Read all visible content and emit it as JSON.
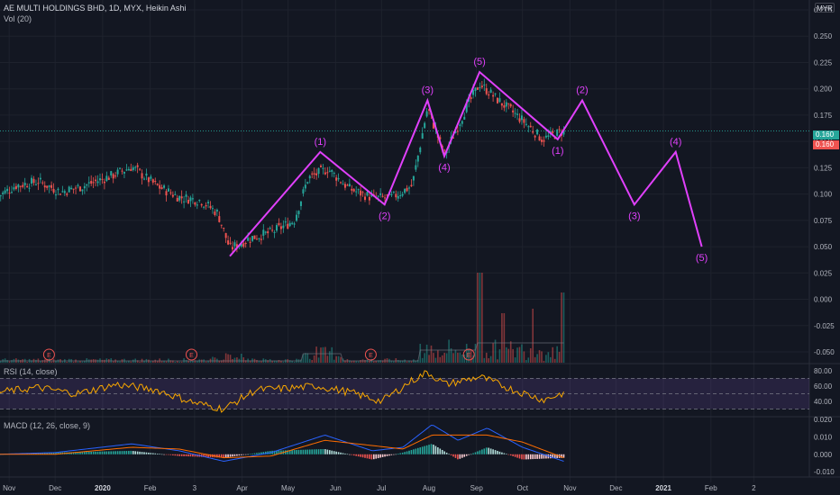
{
  "header": {
    "symbol_line": "AE MULTI HOLDINGS BHD, 1D, MYX, Heikin Ashi",
    "volume_label": "Vol (20)",
    "rsi_label": "RSI (14, close)",
    "macd_label": "MACD (12, 26, close, 9)",
    "currency": "MYR"
  },
  "colors": {
    "background": "#131722",
    "up": "#26a69a",
    "down": "#ef5350",
    "wave": "#e040fb",
    "rsi_line": "#f7a600",
    "rsi_band": "#7e57c2",
    "macd_line": "#2962ff",
    "signal_line": "#ff6d00",
    "grid": "#1e222d",
    "axis_text": "#b2b5be"
  },
  "last_price": {
    "close_label": "0.160",
    "current_label": "0.160"
  },
  "chart_data": [
    {
      "type": "candlestick",
      "title": "AE MULTI HOLDINGS BHD, 1D, MYX, Heikin Ashi",
      "y_ticks": [
        "0.275",
        "0.250",
        "0.225",
        "0.200",
        "0.175",
        "0.150",
        "0.125",
        "0.100",
        "0.075",
        "0.050",
        "0.025",
        "0.000",
        "-0.025",
        "-0.050"
      ],
      "ylim": [
        -0.06,
        0.28
      ],
      "x_ticks": [
        "Nov",
        "Dec",
        "2020",
        "Feb",
        "3",
        "Apr",
        "May",
        "Jun",
        "Jul",
        "Aug",
        "Sep",
        "Oct",
        "Nov",
        "Dec",
        "2021",
        "Feb",
        "2"
      ],
      "price_path": [
        [
          "2019-10-25",
          0.098
        ],
        [
          "2019-11-05",
          0.108
        ],
        [
          "2019-11-20",
          0.112
        ],
        [
          "2019-12-05",
          0.102
        ],
        [
          "2019-12-20",
          0.108
        ],
        [
          "2020-01-08",
          0.118
        ],
        [
          "2020-01-20",
          0.126
        ],
        [
          "2020-02-05",
          0.108
        ],
        [
          "2020-02-20",
          0.097
        ],
        [
          "2020-03-05",
          0.094
        ],
        [
          "2020-03-16",
          0.082
        ],
        [
          "2020-03-24",
          0.048
        ],
        [
          "2020-04-06",
          0.058
        ],
        [
          "2020-04-21",
          0.064
        ],
        [
          "2020-05-05",
          0.075
        ],
        [
          "2020-05-14",
          0.115
        ],
        [
          "2020-05-27",
          0.124
        ],
        [
          "2020-06-10",
          0.105
        ],
        [
          "2020-06-26",
          0.096
        ],
        [
          "2020-07-08",
          0.097
        ],
        [
          "2020-07-21",
          0.108
        ],
        [
          "2020-07-31",
          0.182
        ],
        [
          "2020-08-11",
          0.137
        ],
        [
          "2020-08-24",
          0.178
        ],
        [
          "2020-09-03",
          0.205
        ],
        [
          "2020-09-16",
          0.188
        ],
        [
          "2020-10-01",
          0.17
        ],
        [
          "2020-10-14",
          0.152
        ],
        [
          "2020-10-28",
          0.16
        ]
      ],
      "wave_labels": [
        {
          "label": "(1)",
          "date": "2020-05-22",
          "price": 0.14
        },
        {
          "label": "(2)",
          "date": "2020-07-03",
          "price": 0.09
        },
        {
          "label": "(3)",
          "date": "2020-07-31",
          "price": 0.189
        },
        {
          "label": "(4)",
          "date": "2020-08-11",
          "price": 0.136
        },
        {
          "label": "(5)",
          "date": "2020-09-03",
          "price": 0.216
        },
        {
          "label": "(1)",
          "date": "2020-10-24",
          "price": 0.152
        },
        {
          "label": "(2)",
          "date": "2020-11-09",
          "price": 0.189
        },
        {
          "label": "(3)",
          "date": "2020-12-13",
          "price": 0.09
        },
        {
          "label": "(4)",
          "date": "2021-01-09",
          "price": 0.14
        },
        {
          "label": "(5)",
          "date": "2021-01-26",
          "price": 0.05
        }
      ],
      "wave_path": [
        [
          "2020-03-24",
          0.041
        ],
        [
          "2020-05-22",
          0.14
        ],
        [
          "2020-07-03",
          0.09
        ],
        [
          "2020-07-31",
          0.189
        ],
        [
          "2020-08-11",
          0.136
        ],
        [
          "2020-09-03",
          0.216
        ],
        [
          "2020-10-24",
          0.152
        ],
        [
          "2020-11-09",
          0.189
        ],
        [
          "2020-12-13",
          0.09
        ],
        [
          "2021-01-09",
          0.14
        ],
        [
          "2021-01-26",
          0.05
        ]
      ],
      "earnings_markers": [
        {
          "label": "E",
          "date": "2019-11-27"
        },
        {
          "label": "E",
          "date": "2020-02-28"
        },
        {
          "label": "E",
          "date": "2020-06-24"
        },
        {
          "label": "E",
          "date": "2020-08-27"
        }
      ]
    },
    {
      "type": "line",
      "title": "RSI (14, close)",
      "y_ticks": [
        "80.00",
        "60.00",
        "40.00"
      ],
      "ylim": [
        20,
        88
      ],
      "band": [
        30,
        70
      ],
      "x": [
        "2019-10-25",
        "2019-11-20",
        "2019-12-15",
        "2020-01-10",
        "2020-02-05",
        "2020-03-01",
        "2020-03-20",
        "2020-04-10",
        "2020-05-01",
        "2020-05-20",
        "2020-06-10",
        "2020-07-01",
        "2020-07-20",
        "2020-07-31",
        "2020-08-12",
        "2020-09-03",
        "2020-09-25",
        "2020-10-15",
        "2020-10-28"
      ],
      "values": [
        52,
        58,
        50,
        62,
        55,
        38,
        30,
        55,
        57,
        60,
        52,
        40,
        66,
        78,
        62,
        72,
        55,
        42,
        51
      ]
    },
    {
      "type": "line",
      "title": "MACD (12, 26, close, 9)",
      "y_ticks": [
        "0.020",
        "0.010",
        "0.000",
        "-0.010"
      ],
      "ylim": [
        -0.013,
        0.021
      ],
      "x": [
        "2019-10-25",
        "2019-12-01",
        "2020-01-20",
        "2020-02-20",
        "2020-03-20",
        "2020-04-20",
        "2020-05-25",
        "2020-06-25",
        "2020-07-15",
        "2020-08-03",
        "2020-08-20",
        "2020-09-08",
        "2020-10-01",
        "2020-10-28"
      ],
      "series": [
        {
          "name": "MACD",
          "values": [
            0.0,
            0.001,
            0.006,
            0.002,
            -0.004,
            0.001,
            0.011,
            0.002,
            0.004,
            0.017,
            0.008,
            0.015,
            0.004,
            -0.004
          ]
        },
        {
          "name": "Signal",
          "values": [
            0.0,
            0.0,
            0.004,
            0.003,
            -0.002,
            -0.001,
            0.008,
            0.005,
            0.003,
            0.011,
            0.011,
            0.011,
            0.007,
            -0.002
          ]
        }
      ]
    }
  ]
}
